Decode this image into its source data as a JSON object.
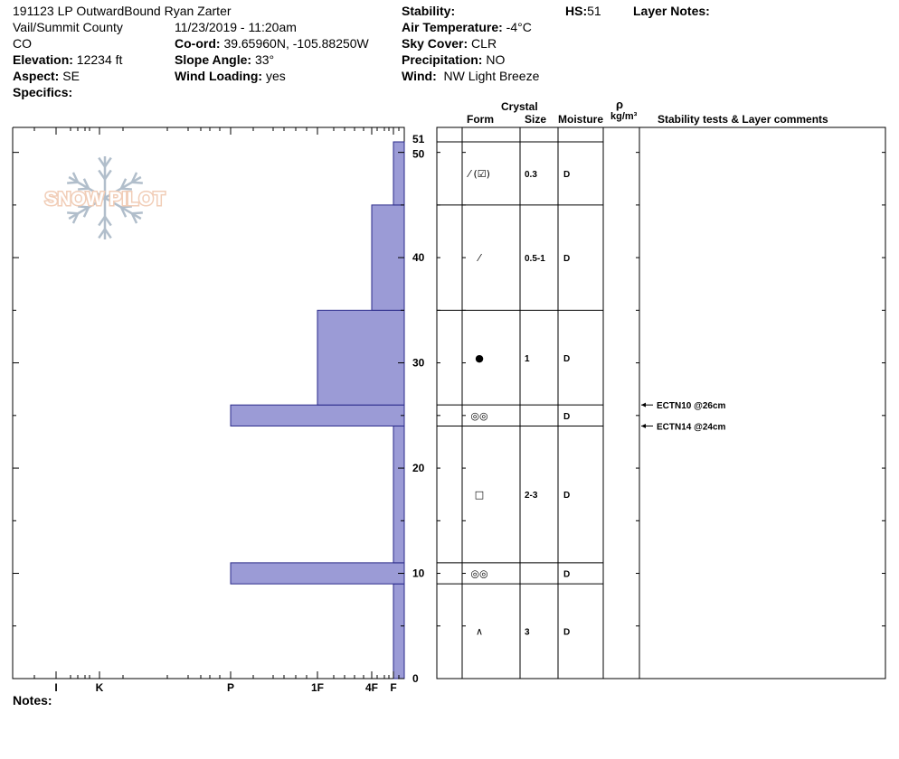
{
  "header": {
    "title": "191123 LP OutwardBound Ryan Zarter",
    "location": "Vail/Summit County",
    "state": "CO",
    "elevation_label": "Elevation:",
    "elevation_value": "12234 ft",
    "aspect_label": "Aspect:",
    "aspect_value": "SE",
    "specifics_label": "Specifics:",
    "datetime": "11/23/2019 - 11:20am",
    "coord_label": "Co-ord:",
    "coord_value": "39.65960N, -105.88250W",
    "slope_label": "Slope Angle:",
    "slope_value": "33°",
    "wind_loading_label": "Wind Loading:",
    "wind_loading_value": "yes",
    "stability_label": "Stability:",
    "air_temp_label": "Air Temperature:",
    "air_temp_value": "-4°C",
    "sky_label": "Sky Cover:",
    "sky_value": "CLR",
    "precip_label": "Precipitation:",
    "precip_value": "NO",
    "wind_label": "Wind:",
    "wind_value": "NW Light Breeze",
    "hs_label": "HS:",
    "hs_value": "51",
    "layer_notes_label": "Layer Notes:"
  },
  "columns": {
    "crystal": "Crystal",
    "form": "Form",
    "size": "Size",
    "moisture": "Moisture",
    "rho": "ρ",
    "density_unit": "kg/m³",
    "comments": "Stability tests & Layer comments"
  },
  "notes_label": "Notes:",
  "watermark": "SNOW PILOT",
  "colors": {
    "hardness_fill": "#9b9bd6",
    "hardness_stroke": "#2a2a8a",
    "watermark": "#f0c8b0",
    "watermark_snowflake": "#a9b8c6"
  },
  "chart_data": {
    "type": "bar",
    "orientation": "horizontal",
    "y_axis": {
      "label": "",
      "range": [
        0,
        51
      ],
      "ticks": [
        0,
        10,
        20,
        30,
        40,
        50,
        51
      ]
    },
    "x_axis": {
      "categories": [
        "I",
        "K",
        "P",
        "1F",
        "4F",
        "F"
      ]
    },
    "hardness_profile": [
      {
        "bottom": 0,
        "top": 9,
        "hardness": "F"
      },
      {
        "bottom": 9,
        "top": 11,
        "hardness": "P"
      },
      {
        "bottom": 11,
        "top": 24,
        "hardness": "F"
      },
      {
        "bottom": 24,
        "top": 26,
        "hardness": "P"
      },
      {
        "bottom": 26,
        "top": 35,
        "hardness": "1F"
      },
      {
        "bottom": 35,
        "top": 45,
        "hardness": "4F"
      },
      {
        "bottom": 45,
        "top": 51,
        "hardness": "F"
      }
    ],
    "layers": [
      {
        "bottom": 45,
        "top": 51,
        "form": "precipitation-particles-decomposing",
        "form_glyph": "⁄ (☑)",
        "size": "0.3",
        "moisture": "D"
      },
      {
        "bottom": 35,
        "top": 45,
        "form": "decomposing-fragmented",
        "form_glyph": "⁄",
        "size": "0.5-1",
        "moisture": "D"
      },
      {
        "bottom": 26,
        "top": 35,
        "form": "rounded-grains",
        "form_glyph": "●",
        "size": "1",
        "moisture": "D"
      },
      {
        "bottom": 24,
        "top": 26,
        "form": "melt-freeze-crust",
        "form_glyph": "◎◎",
        "size": "",
        "moisture": "D"
      },
      {
        "bottom": 11,
        "top": 24,
        "form": "faceted-crystals",
        "form_glyph": "□",
        "size": "2-3",
        "moisture": "D"
      },
      {
        "bottom": 9,
        "top": 11,
        "form": "melt-freeze-crust",
        "form_glyph": "◎◎",
        "size": "",
        "moisture": "D"
      },
      {
        "bottom": 0,
        "top": 9,
        "form": "depth-hoar",
        "form_glyph": "∧",
        "size": "3",
        "moisture": "D"
      }
    ],
    "stability_tests": [
      {
        "depth": 26,
        "label": "ECTN10 @26cm"
      },
      {
        "depth": 24,
        "label": "ECTN14 @24cm"
      }
    ]
  }
}
